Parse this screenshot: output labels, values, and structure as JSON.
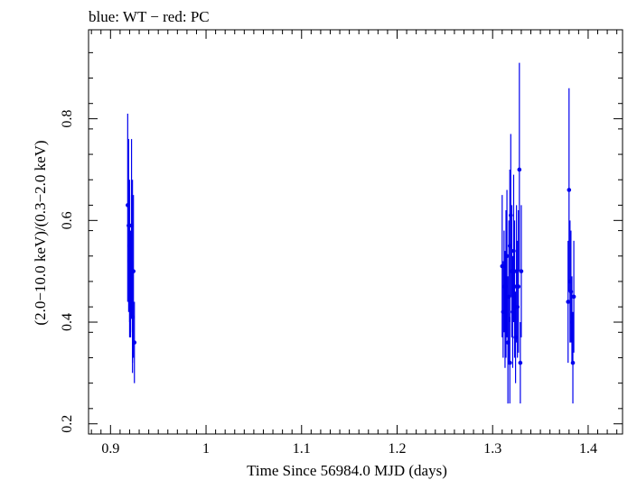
{
  "chart_data": {
    "type": "scatter",
    "title": "blue: WT − red: PC",
    "xlabel": "Time Since 56984.0 MJD (days)",
    "ylabel": "(2.0−10.0 keV)/(0.3−2.0 keV)",
    "xlim": [
      0.877,
      1.436
    ],
    "ylim": [
      0.18,
      0.975
    ],
    "xticks": [
      0.9,
      1,
      1.1,
      1.2,
      1.3,
      1.4
    ],
    "xtick_labels": [
      "0.9",
      "1",
      "1.1",
      "1.2",
      "1.3",
      "1.4"
    ],
    "yticks": [
      0.2,
      0.4,
      0.6,
      0.8
    ],
    "ytick_labels": [
      "0.2",
      "0.4",
      "0.6",
      "0.8"
    ],
    "grid": false,
    "series": [
      {
        "name": "WT",
        "color": "#0000ee",
        "points": [
          {
            "x": 0.918,
            "y": 0.63,
            "ylo": 0.44,
            "yhi": 0.81
          },
          {
            "x": 0.919,
            "y": 0.59,
            "ylo": 0.42,
            "yhi": 0.76
          },
          {
            "x": 0.92,
            "y": 0.55,
            "ylo": 0.4,
            "yhi": 0.68
          },
          {
            "x": 0.92,
            "y": 0.52,
            "ylo": 0.37,
            "yhi": 0.65
          },
          {
            "x": 0.921,
            "y": 0.47,
            "ylo": 0.38,
            "yhi": 0.58
          },
          {
            "x": 0.921,
            "y": 0.43,
            "ylo": 0.37,
            "yhi": 0.5
          },
          {
            "x": 0.922,
            "y": 0.59,
            "ylo": 0.41,
            "yhi": 0.76
          },
          {
            "x": 0.923,
            "y": 0.5,
            "ylo": 0.32,
            "yhi": 0.68
          },
          {
            "x": 0.923,
            "y": 0.41,
            "ylo": 0.3,
            "yhi": 0.52
          },
          {
            "x": 0.924,
            "y": 0.5,
            "ylo": 0.33,
            "yhi": 0.65
          },
          {
            "x": 0.925,
            "y": 0.36,
            "ylo": 0.28,
            "yhi": 0.44
          },
          {
            "x": 1.31,
            "y": 0.51,
            "ylo": 0.37,
            "yhi": 0.65
          },
          {
            "x": 1.311,
            "y": 0.42,
            "ylo": 0.33,
            "yhi": 0.52
          },
          {
            "x": 1.312,
            "y": 0.47,
            "ylo": 0.38,
            "yhi": 0.58
          },
          {
            "x": 1.313,
            "y": 0.42,
            "ylo": 0.31,
            "yhi": 0.54
          },
          {
            "x": 1.314,
            "y": 0.47,
            "ylo": 0.33,
            "yhi": 0.62
          },
          {
            "x": 1.315,
            "y": 0.53,
            "ylo": 0.37,
            "yhi": 0.66
          },
          {
            "x": 1.316,
            "y": 0.36,
            "ylo": 0.24,
            "yhi": 0.49
          },
          {
            "x": 1.317,
            "y": 0.45,
            "ylo": 0.32,
            "yhi": 0.6
          },
          {
            "x": 1.318,
            "y": 0.55,
            "ylo": 0.4,
            "yhi": 0.7
          },
          {
            "x": 1.318,
            "y": 0.32,
            "ylo": 0.24,
            "yhi": 0.41
          },
          {
            "x": 1.319,
            "y": 0.61,
            "ylo": 0.45,
            "yhi": 0.77
          },
          {
            "x": 1.32,
            "y": 0.5,
            "ylo": 0.37,
            "yhi": 0.63
          },
          {
            "x": 1.321,
            "y": 0.42,
            "ylo": 0.31,
            "yhi": 0.53
          },
          {
            "x": 1.322,
            "y": 0.54,
            "ylo": 0.4,
            "yhi": 0.69
          },
          {
            "x": 1.323,
            "y": 0.47,
            "ylo": 0.33,
            "yhi": 0.6
          },
          {
            "x": 1.324,
            "y": 0.37,
            "ylo": 0.28,
            "yhi": 0.46
          },
          {
            "x": 1.325,
            "y": 0.5,
            "ylo": 0.36,
            "yhi": 0.63
          },
          {
            "x": 1.326,
            "y": 0.43,
            "ylo": 0.33,
            "yhi": 0.56
          },
          {
            "x": 1.327,
            "y": 0.47,
            "ylo": 0.34,
            "yhi": 0.62
          },
          {
            "x": 1.328,
            "y": 0.7,
            "ylo": 0.5,
            "yhi": 0.91
          },
          {
            "x": 1.329,
            "y": 0.32,
            "ylo": 0.24,
            "yhi": 0.4
          },
          {
            "x": 1.33,
            "y": 0.5,
            "ylo": 0.37,
            "yhi": 0.63
          },
          {
            "x": 1.379,
            "y": 0.44,
            "ylo": 0.32,
            "yhi": 0.56
          },
          {
            "x": 1.38,
            "y": 0.66,
            "ylo": 0.46,
            "yhi": 0.86
          },
          {
            "x": 1.381,
            "y": 0.48,
            "ylo": 0.36,
            "yhi": 0.6
          },
          {
            "x": 1.382,
            "y": 0.46,
            "ylo": 0.36,
            "yhi": 0.58
          },
          {
            "x": 1.383,
            "y": 0.4,
            "ylo": 0.32,
            "yhi": 0.49
          },
          {
            "x": 1.384,
            "y": 0.32,
            "ylo": 0.24,
            "yhi": 0.42
          },
          {
            "x": 1.385,
            "y": 0.45,
            "ylo": 0.34,
            "yhi": 0.56
          }
        ]
      }
    ]
  }
}
